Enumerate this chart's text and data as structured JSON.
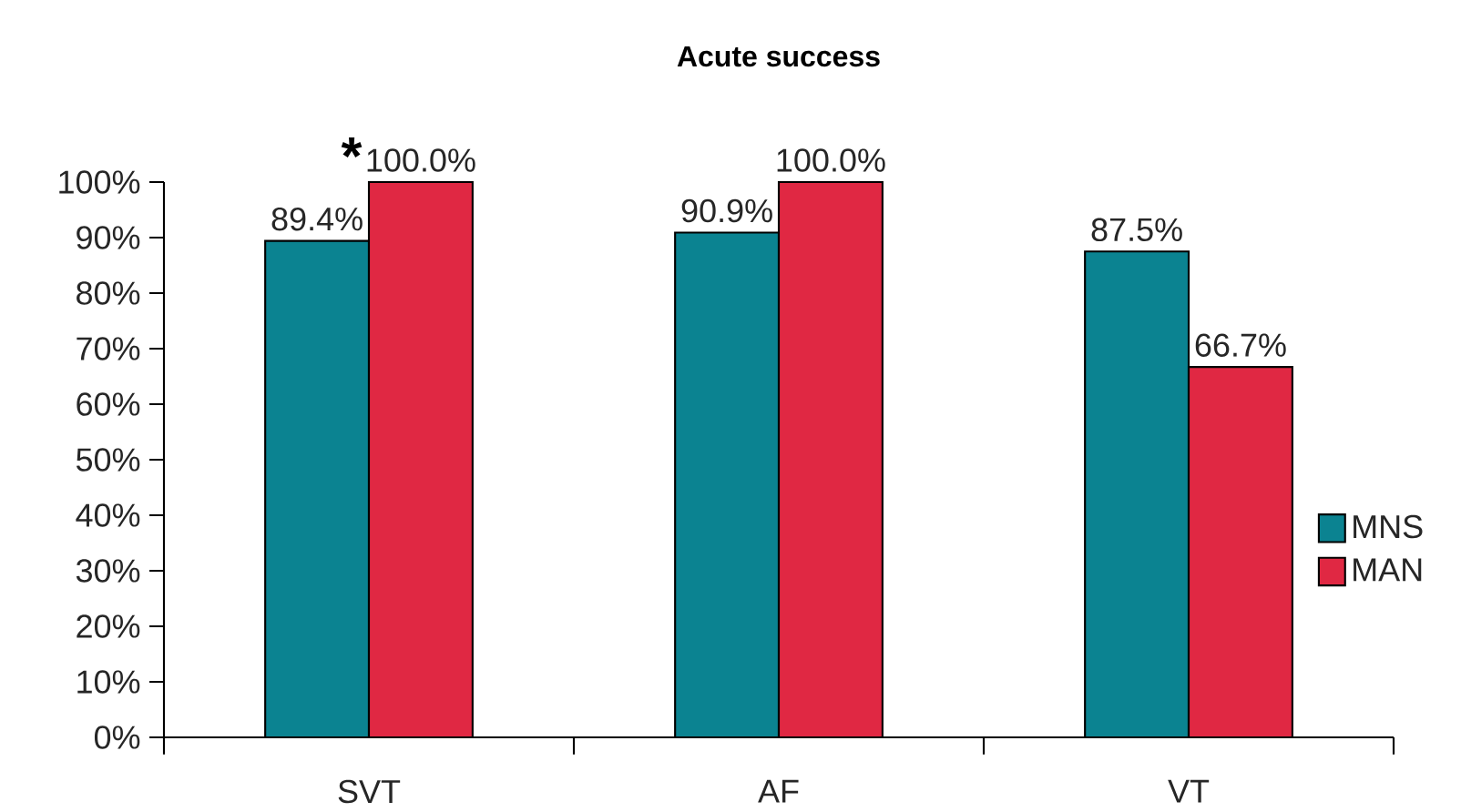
{
  "chart_data": {
    "type": "bar",
    "title": "Acute success",
    "categories": [
      "SVT",
      "AF",
      "VT"
    ],
    "series": [
      {
        "name": "MNS",
        "color": "#0b8391",
        "values": [
          89.4,
          90.9,
          87.5
        ],
        "value_labels": [
          "89.4%",
          "90.9%",
          "87.5%"
        ]
      },
      {
        "name": "MAN",
        "color": "#e02843",
        "values": [
          100,
          100,
          66.7
        ],
        "value_labels": [
          "100.0%",
          "100.0%",
          "66.7%"
        ]
      }
    ],
    "ylim": [
      0,
      100
    ],
    "yticks": [
      {
        "value": 0,
        "label": "0%"
      },
      {
        "value": 10,
        "label": "10%"
      },
      {
        "value": 20,
        "label": "20%"
      },
      {
        "value": 30,
        "label": "30%"
      },
      {
        "value": 40,
        "label": "40%"
      },
      {
        "value": 50,
        "label": "50%"
      },
      {
        "value": 60,
        "label": "60%"
      },
      {
        "value": 70,
        "label": "70%"
      },
      {
        "value": 80,
        "label": "80%"
      },
      {
        "value": 90,
        "label": "90%"
      },
      {
        "value": 100,
        "label": "100%"
      }
    ],
    "annotations": [
      {
        "text": "*",
        "x": "SVT",
        "y": 100
      }
    ],
    "legend": "right",
    "grid": false
  }
}
